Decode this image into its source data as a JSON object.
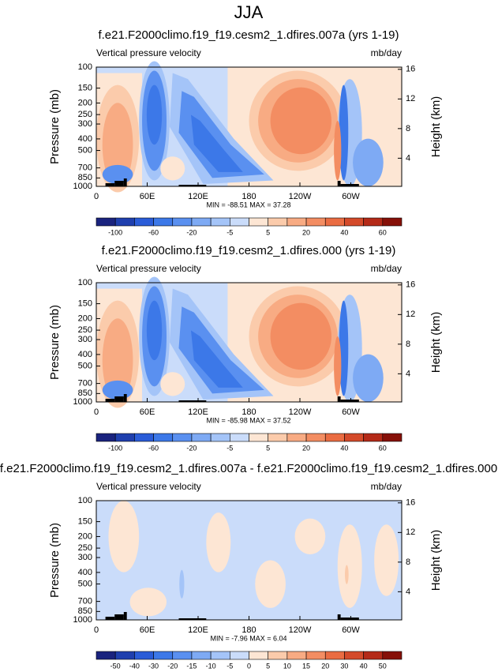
{
  "title": "JJA",
  "chart_data": [
    {
      "type": "contour",
      "title": "f.e21.F2000climo.f19_f19.cesm2_1.dfires.007a (yrs 1-19)",
      "left_label": "Vertical pressure velocity",
      "right_label": "mb/day",
      "xlim": [
        0,
        360
      ],
      "xticks": [
        0,
        {
          "value": 60,
          "label": "60E"
        },
        {
          "value": 120,
          "label": "120E"
        },
        180,
        {
          "value": 240,
          "label": "120W"
        },
        {
          "value": 300,
          "label": "60W"
        }
      ],
      "ylabel": "Pressure (mb)",
      "log_y": true,
      "ylim": [
        1000,
        100
      ],
      "yticks": [
        100,
        150,
        200,
        250,
        300,
        400,
        500,
        700,
        850,
        1000
      ],
      "y2label": "Height (km)",
      "y2lim": [
        0.2,
        16.3
      ],
      "y2ticks": [
        4,
        8,
        12,
        16
      ],
      "stats": "MIN = -88.51  MAX = 37.28",
      "colorbar": {
        "colors": [
          "#1a237e",
          "#1f3fae",
          "#2a5cd8",
          "#3c78e8",
          "#5a90f0",
          "#7eaaf4",
          "#a4c4f8",
          "#cadcfa",
          "#fde6d4",
          "#fbcbab",
          "#f8ab83",
          "#f38d62",
          "#ea6c42",
          "#d44a2a",
          "#b42a18",
          "#861008"
        ],
        "ticks": [
          -100,
          -60,
          -20,
          -5,
          5,
          20,
          40,
          60
        ]
      }
    },
    {
      "type": "contour",
      "title": "f.e21.F2000climo.f19_f19.cesm2_1.dfires.000 (yrs 1-19)",
      "left_label": "Vertical pressure velocity",
      "right_label": "mb/day",
      "xlim": [
        0,
        360
      ],
      "xticks": [
        0,
        {
          "value": 60,
          "label": "60E"
        },
        {
          "value": 120,
          "label": "120E"
        },
        180,
        {
          "value": 240,
          "label": "120W"
        },
        {
          "value": 300,
          "label": "60W"
        }
      ],
      "ylabel": "Pressure (mb)",
      "log_y": true,
      "ylim": [
        1000,
        100
      ],
      "yticks": [
        100,
        150,
        200,
        250,
        300,
        400,
        500,
        700,
        850,
        1000
      ],
      "y2label": "Height (km)",
      "y2lim": [
        0.2,
        16.3
      ],
      "y2ticks": [
        4,
        8,
        12,
        16
      ],
      "stats": "MIN = -85.98  MAX = 37.52",
      "colorbar": {
        "colors": [
          "#1a237e",
          "#1f3fae",
          "#2a5cd8",
          "#3c78e8",
          "#5a90f0",
          "#7eaaf4",
          "#a4c4f8",
          "#cadcfa",
          "#fde6d4",
          "#fbcbab",
          "#f8ab83",
          "#f38d62",
          "#ea6c42",
          "#d44a2a",
          "#b42a18",
          "#861008"
        ],
        "ticks": [
          -100,
          -60,
          -20,
          -5,
          5,
          20,
          40,
          60
        ]
      }
    },
    {
      "type": "contour",
      "title": "f.e21.F2000climo.f19_f19.cesm2_1.dfires.007a - f.e21.F2000climo.f19_f19.cesm2_1.dfires.000",
      "left_label": "Vertical pressure velocity",
      "right_label": "mb/day",
      "xlim": [
        0,
        360
      ],
      "xticks": [
        0,
        {
          "value": 60,
          "label": "60E"
        },
        {
          "value": 120,
          "label": "120E"
        },
        180,
        {
          "value": 240,
          "label": "120W"
        },
        {
          "value": 300,
          "label": "60W"
        }
      ],
      "ylabel": "Pressure (mb)",
      "log_y": true,
      "ylim": [
        1000,
        100
      ],
      "yticks": [
        100,
        150,
        200,
        250,
        300,
        400,
        500,
        700,
        850,
        1000
      ],
      "y2label": "Height (km)",
      "y2lim": [
        0.2,
        16.3
      ],
      "y2ticks": [
        4,
        8,
        12,
        16
      ],
      "stats": "MIN = -7.96  MAX = 6.04",
      "colorbar": {
        "colors": [
          "#1a237e",
          "#1f3fae",
          "#2a5cd8",
          "#3c78e8",
          "#5a90f0",
          "#7eaaf4",
          "#a4c4f8",
          "#cadcfa",
          "#fde6d4",
          "#fbcbab",
          "#f8ab83",
          "#f38d62",
          "#ea6c42",
          "#d44a2a",
          "#b42a18",
          "#861008"
        ],
        "ticks": [
          -50,
          -40,
          -30,
          -20,
          -15,
          -10,
          -5,
          0,
          5,
          10,
          15,
          20,
          30,
          40,
          50
        ]
      }
    }
  ]
}
